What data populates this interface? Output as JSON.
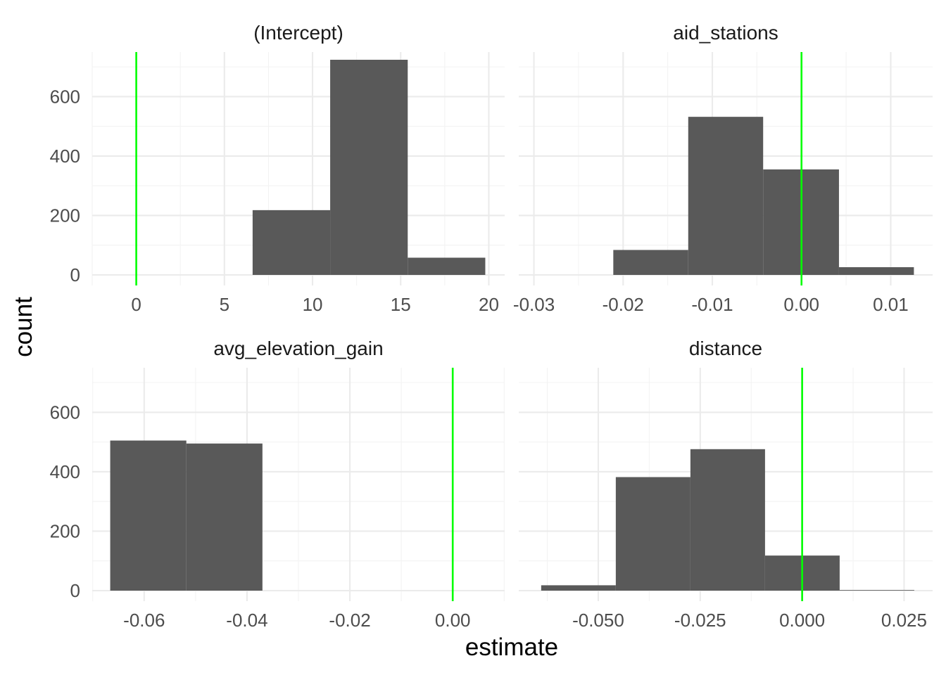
{
  "chart_data": {
    "type": "bar",
    "layout": "facet-wrap-2x2",
    "xlabel": "estimate",
    "ylabel": "count",
    "y_range": [
      0,
      750
    ],
    "y_ticks": [
      0,
      200,
      400,
      600
    ],
    "y_tick_labels": [
      "0",
      "200",
      "400",
      "600"
    ],
    "grid": true,
    "reference_line": {
      "x": 0,
      "color": "#00ff00"
    },
    "bar_color": "#595959",
    "panels": [
      {
        "title": "(Intercept)",
        "x_range": [
          -2.5,
          20.9
        ],
        "x_ticks": [
          0,
          5,
          10,
          15,
          20
        ],
        "x_tick_labels": [
          "0",
          "5",
          "10",
          "15",
          "20"
        ],
        "bins": [
          {
            "x0": 6.6,
            "x1": 11.0,
            "count": 218
          },
          {
            "x0": 11.0,
            "x1": 15.4,
            "count": 724
          },
          {
            "x0": 15.4,
            "x1": 19.8,
            "count": 58
          }
        ]
      },
      {
        "title": "aid_stations",
        "x_range": [
          -0.0317,
          0.0147
        ],
        "x_ticks": [
          -0.03,
          -0.02,
          -0.01,
          0.0,
          0.01
        ],
        "x_tick_labels": [
          "-0.03",
          "-0.02",
          "-0.01",
          "0.00",
          "0.01"
        ],
        "bins": [
          {
            "x0": -0.0211,
            "x1": -0.0127,
            "count": 84
          },
          {
            "x0": -0.0127,
            "x1": -0.0043,
            "count": 532
          },
          {
            "x0": -0.0043,
            "x1": 0.0042,
            "count": 355
          },
          {
            "x0": 0.0042,
            "x1": 0.0126,
            "count": 26
          }
        ]
      },
      {
        "title": "avg_elevation_gain",
        "x_range": [
          -0.0701,
          0.0101
        ],
        "x_ticks": [
          -0.06,
          -0.04,
          -0.02,
          0.0
        ],
        "x_tick_labels": [
          "-0.06",
          "-0.04",
          "-0.02",
          "0.00"
        ],
        "bins": [
          {
            "x0": -0.0666,
            "x1": -0.0518,
            "count": 505
          },
          {
            "x0": -0.0518,
            "x1": -0.037,
            "count": 495
          }
        ]
      },
      {
        "title": "distance",
        "x_range": [
          -0.0695,
          0.032
        ],
        "x_ticks": [
          -0.05,
          -0.025,
          0.0,
          0.025
        ],
        "x_tick_labels": [
          "-0.050",
          "-0.025",
          "0.000",
          "0.025"
        ],
        "bins": [
          {
            "x0": -0.064,
            "x1": -0.0457,
            "count": 18
          },
          {
            "x0": -0.0457,
            "x1": -0.0274,
            "count": 382
          },
          {
            "x0": -0.0274,
            "x1": -0.0091,
            "count": 476
          },
          {
            "x0": -0.0091,
            "x1": 0.0092,
            "count": 118
          },
          {
            "x0": 0.0092,
            "x1": 0.0275,
            "count": 2
          }
        ]
      }
    ]
  }
}
